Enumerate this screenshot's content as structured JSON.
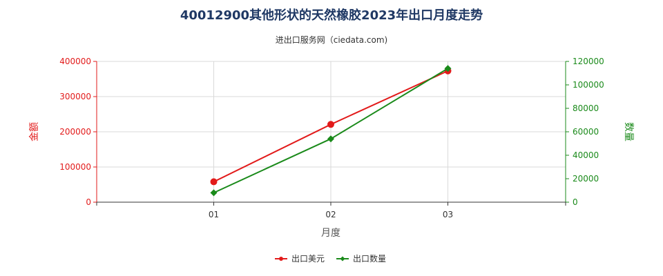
{
  "chart_data": {
    "type": "line",
    "title": "40012900其他形状的天然橡胶2023年出口月度走势",
    "subtitle": "进出口服务网（ciedata.com)",
    "xlabel": "月度",
    "ylabel_left": "金额",
    "ylabel_right": "数量",
    "categories": [
      "01",
      "02",
      "03"
    ],
    "ylim_left": [
      0,
      400000
    ],
    "ylim_right": [
      0,
      120000
    ],
    "yticks_left": [
      "0",
      "100000",
      "200000",
      "300000",
      "400000"
    ],
    "yticks_right": [
      "0",
      "20000",
      "40000",
      "60000",
      "80000",
      "100000",
      "120000"
    ],
    "grid": true,
    "legend_position": "bottom",
    "series": [
      {
        "name": "出口美元",
        "axis": "left",
        "color": "#e21a1a",
        "marker": "circle",
        "values": [
          58000,
          221000,
          373000
        ]
      },
      {
        "name": "出口数量",
        "axis": "right",
        "color": "#1a8a1a",
        "marker": "diamond",
        "values": [
          8000,
          54000,
          114000
        ]
      }
    ]
  }
}
